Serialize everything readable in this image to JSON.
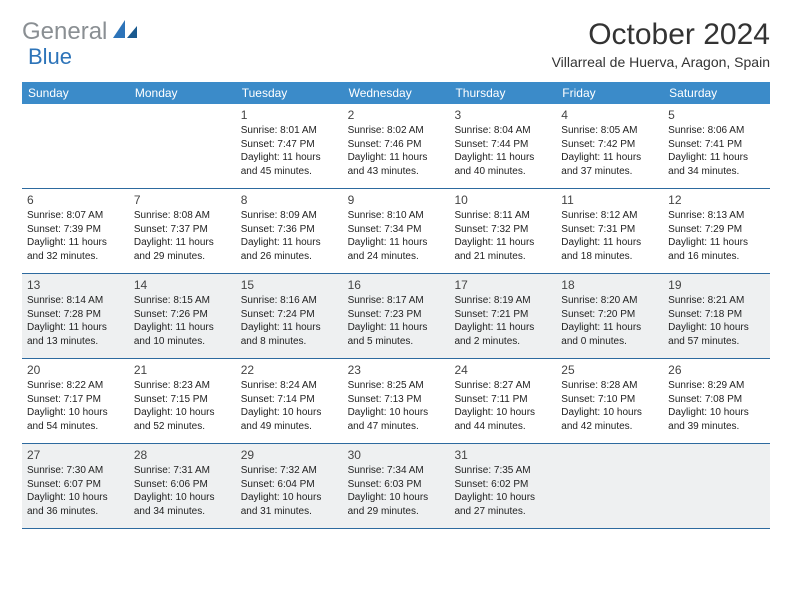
{
  "logo": {
    "text_gray": "General",
    "text_blue": "Blue"
  },
  "title": "October 2024",
  "location": "Villarreal de Huerva, Aragon, Spain",
  "colors": {
    "header_bg": "#3b8bc9",
    "header_text": "#ffffff",
    "row_border": "#2d6a9f",
    "shaded_bg": "#eef0f1",
    "logo_gray": "#8a8f93",
    "logo_blue": "#2d74b9",
    "body_text": "#222222"
  },
  "weekdays": [
    "Sunday",
    "Monday",
    "Tuesday",
    "Wednesday",
    "Thursday",
    "Friday",
    "Saturday"
  ],
  "weeks": [
    {
      "shaded": false,
      "days": [
        null,
        null,
        {
          "num": "1",
          "sunrise": "Sunrise: 8:01 AM",
          "sunset": "Sunset: 7:47 PM",
          "day1": "Daylight: 11 hours",
          "day2": "and 45 minutes."
        },
        {
          "num": "2",
          "sunrise": "Sunrise: 8:02 AM",
          "sunset": "Sunset: 7:46 PM",
          "day1": "Daylight: 11 hours",
          "day2": "and 43 minutes."
        },
        {
          "num": "3",
          "sunrise": "Sunrise: 8:04 AM",
          "sunset": "Sunset: 7:44 PM",
          "day1": "Daylight: 11 hours",
          "day2": "and 40 minutes."
        },
        {
          "num": "4",
          "sunrise": "Sunrise: 8:05 AM",
          "sunset": "Sunset: 7:42 PM",
          "day1": "Daylight: 11 hours",
          "day2": "and 37 minutes."
        },
        {
          "num": "5",
          "sunrise": "Sunrise: 8:06 AM",
          "sunset": "Sunset: 7:41 PM",
          "day1": "Daylight: 11 hours",
          "day2": "and 34 minutes."
        }
      ]
    },
    {
      "shaded": false,
      "days": [
        {
          "num": "6",
          "sunrise": "Sunrise: 8:07 AM",
          "sunset": "Sunset: 7:39 PM",
          "day1": "Daylight: 11 hours",
          "day2": "and 32 minutes."
        },
        {
          "num": "7",
          "sunrise": "Sunrise: 8:08 AM",
          "sunset": "Sunset: 7:37 PM",
          "day1": "Daylight: 11 hours",
          "day2": "and 29 minutes."
        },
        {
          "num": "8",
          "sunrise": "Sunrise: 8:09 AM",
          "sunset": "Sunset: 7:36 PM",
          "day1": "Daylight: 11 hours",
          "day2": "and 26 minutes."
        },
        {
          "num": "9",
          "sunrise": "Sunrise: 8:10 AM",
          "sunset": "Sunset: 7:34 PM",
          "day1": "Daylight: 11 hours",
          "day2": "and 24 minutes."
        },
        {
          "num": "10",
          "sunrise": "Sunrise: 8:11 AM",
          "sunset": "Sunset: 7:32 PM",
          "day1": "Daylight: 11 hours",
          "day2": "and 21 minutes."
        },
        {
          "num": "11",
          "sunrise": "Sunrise: 8:12 AM",
          "sunset": "Sunset: 7:31 PM",
          "day1": "Daylight: 11 hours",
          "day2": "and 18 minutes."
        },
        {
          "num": "12",
          "sunrise": "Sunrise: 8:13 AM",
          "sunset": "Sunset: 7:29 PM",
          "day1": "Daylight: 11 hours",
          "day2": "and 16 minutes."
        }
      ]
    },
    {
      "shaded": true,
      "days": [
        {
          "num": "13",
          "sunrise": "Sunrise: 8:14 AM",
          "sunset": "Sunset: 7:28 PM",
          "day1": "Daylight: 11 hours",
          "day2": "and 13 minutes."
        },
        {
          "num": "14",
          "sunrise": "Sunrise: 8:15 AM",
          "sunset": "Sunset: 7:26 PM",
          "day1": "Daylight: 11 hours",
          "day2": "and 10 minutes."
        },
        {
          "num": "15",
          "sunrise": "Sunrise: 8:16 AM",
          "sunset": "Sunset: 7:24 PM",
          "day1": "Daylight: 11 hours",
          "day2": "and 8 minutes."
        },
        {
          "num": "16",
          "sunrise": "Sunrise: 8:17 AM",
          "sunset": "Sunset: 7:23 PM",
          "day1": "Daylight: 11 hours",
          "day2": "and 5 minutes."
        },
        {
          "num": "17",
          "sunrise": "Sunrise: 8:19 AM",
          "sunset": "Sunset: 7:21 PM",
          "day1": "Daylight: 11 hours",
          "day2": "and 2 minutes."
        },
        {
          "num": "18",
          "sunrise": "Sunrise: 8:20 AM",
          "sunset": "Sunset: 7:20 PM",
          "day1": "Daylight: 11 hours",
          "day2": "and 0 minutes."
        },
        {
          "num": "19",
          "sunrise": "Sunrise: 8:21 AM",
          "sunset": "Sunset: 7:18 PM",
          "day1": "Daylight: 10 hours",
          "day2": "and 57 minutes."
        }
      ]
    },
    {
      "shaded": false,
      "days": [
        {
          "num": "20",
          "sunrise": "Sunrise: 8:22 AM",
          "sunset": "Sunset: 7:17 PM",
          "day1": "Daylight: 10 hours",
          "day2": "and 54 minutes."
        },
        {
          "num": "21",
          "sunrise": "Sunrise: 8:23 AM",
          "sunset": "Sunset: 7:15 PM",
          "day1": "Daylight: 10 hours",
          "day2": "and 52 minutes."
        },
        {
          "num": "22",
          "sunrise": "Sunrise: 8:24 AM",
          "sunset": "Sunset: 7:14 PM",
          "day1": "Daylight: 10 hours",
          "day2": "and 49 minutes."
        },
        {
          "num": "23",
          "sunrise": "Sunrise: 8:25 AM",
          "sunset": "Sunset: 7:13 PM",
          "day1": "Daylight: 10 hours",
          "day2": "and 47 minutes."
        },
        {
          "num": "24",
          "sunrise": "Sunrise: 8:27 AM",
          "sunset": "Sunset: 7:11 PM",
          "day1": "Daylight: 10 hours",
          "day2": "and 44 minutes."
        },
        {
          "num": "25",
          "sunrise": "Sunrise: 8:28 AM",
          "sunset": "Sunset: 7:10 PM",
          "day1": "Daylight: 10 hours",
          "day2": "and 42 minutes."
        },
        {
          "num": "26",
          "sunrise": "Sunrise: 8:29 AM",
          "sunset": "Sunset: 7:08 PM",
          "day1": "Daylight: 10 hours",
          "day2": "and 39 minutes."
        }
      ]
    },
    {
      "shaded": true,
      "days": [
        {
          "num": "27",
          "sunrise": "Sunrise: 7:30 AM",
          "sunset": "Sunset: 6:07 PM",
          "day1": "Daylight: 10 hours",
          "day2": "and 36 minutes."
        },
        {
          "num": "28",
          "sunrise": "Sunrise: 7:31 AM",
          "sunset": "Sunset: 6:06 PM",
          "day1": "Daylight: 10 hours",
          "day2": "and 34 minutes."
        },
        {
          "num": "29",
          "sunrise": "Sunrise: 7:32 AM",
          "sunset": "Sunset: 6:04 PM",
          "day1": "Daylight: 10 hours",
          "day2": "and 31 minutes."
        },
        {
          "num": "30",
          "sunrise": "Sunrise: 7:34 AM",
          "sunset": "Sunset: 6:03 PM",
          "day1": "Daylight: 10 hours",
          "day2": "and 29 minutes."
        },
        {
          "num": "31",
          "sunrise": "Sunrise: 7:35 AM",
          "sunset": "Sunset: 6:02 PM",
          "day1": "Daylight: 10 hours",
          "day2": "and 27 minutes."
        },
        null,
        null
      ]
    }
  ]
}
